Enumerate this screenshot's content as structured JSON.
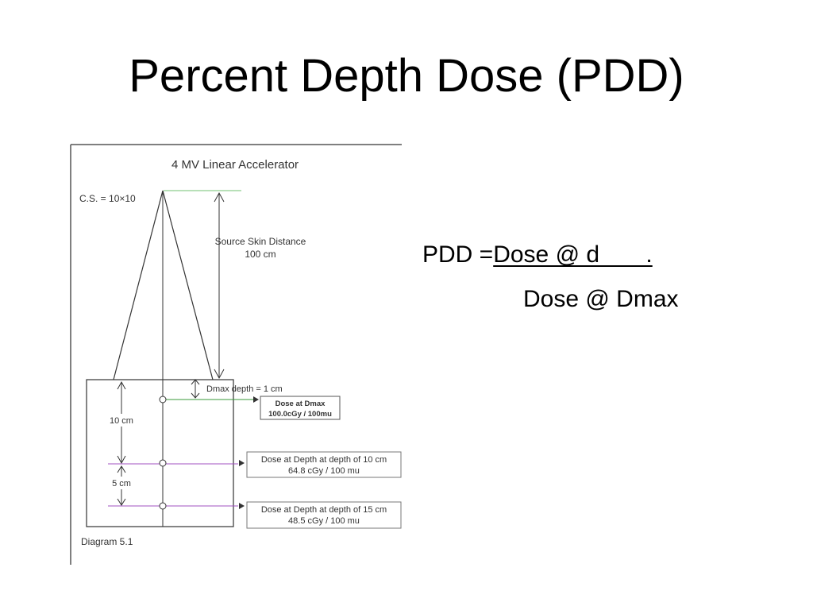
{
  "slide": {
    "title": "Percent Depth Dose (PDD)"
  },
  "diagram": {
    "title": "4 MV Linear Accelerator",
    "field_size_label": "C.S. = 10×10",
    "ssd_label_line1": "Source Skin Distance",
    "ssd_label_line2": "100 cm",
    "dmax_label": "Dmax  depth = 1 cm",
    "depth_10_label": "10 cm",
    "depth_5_label": "5 cm",
    "box_dmax_line1": "Dose at Dmax",
    "box_dmax_line2": "100.0cGy / 100mu",
    "box_d10_line1": "Dose at Depth at depth of 10 cm",
    "box_d10_line2": "64.8 cGy / 100 mu",
    "box_d15_line1": "Dose at Depth at depth of 15 cm",
    "box_d15_line2": "48.5 cGy / 100 mu",
    "caption": "Diagram 5.1",
    "colors": {
      "line": "#333333",
      "dmax_marker": "#3a9a3a",
      "depth10_marker": "#a050c0",
      "depth15_marker": "#a050c0",
      "source_marker": "#70c070"
    }
  },
  "formula": {
    "lhs": "PDD = ",
    "numerator": "Dose @ d       .",
    "denominator": "Dose @ Dmax"
  }
}
